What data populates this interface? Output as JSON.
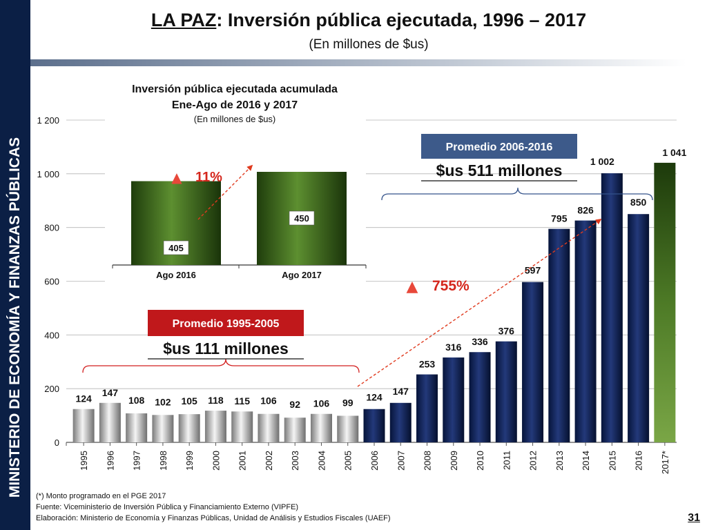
{
  "sidebar": {
    "label": "MINISTERIO DE ECONOMÍA Y FINANZAS PÚBLICAS"
  },
  "header": {
    "title_prefix": "LA PAZ",
    "title_rest": ": Inversión pública ejecutada, 1996 – 2017",
    "subtitle": "(En millones de $us)"
  },
  "colors": {
    "grey_bar": "#b8b8b8",
    "navy_bar": "#0d2259",
    "green_bar": "#3e6b1f",
    "red_box": "#c0181b",
    "blue_box": "#3d5a8a",
    "arrow": "#e03a1e"
  },
  "chart_data": [
    {
      "type": "bar",
      "title": "",
      "xlabel": "",
      "ylabel": "",
      "ylim": [
        0,
        1200
      ],
      "yticks": [
        0,
        200,
        400,
        600,
        800,
        1000,
        1200
      ],
      "ytick_labels": [
        "0",
        "200",
        "400",
        "600",
        "800",
        "1 000",
        "1 200"
      ],
      "grid": true,
      "categories": [
        "1995",
        "1996",
        "1997",
        "1998",
        "1999",
        "2000",
        "2001",
        "2002",
        "2003",
        "2004",
        "2005",
        "2006",
        "2007",
        "2008",
        "2009",
        "2010",
        "2011",
        "2012",
        "2013",
        "2014",
        "2015",
        "2016",
        "2017*"
      ],
      "values": [
        124,
        147,
        108,
        102,
        105,
        118,
        115,
        106,
        92,
        106,
        99,
        124,
        147,
        253,
        316,
        336,
        376,
        597,
        795,
        826,
        1002,
        850,
        1041
      ],
      "value_labels": [
        "124",
        "147",
        "108",
        "102",
        "105",
        "118",
        "115",
        "106",
        "92",
        "106",
        "99",
        "124",
        "147",
        "253",
        "316",
        "336",
        "376",
        "597",
        "795",
        "826",
        "1 002",
        "850",
        "1 041"
      ],
      "annotations": {
        "avg1_box": "Promedio 1995-2005",
        "avg1_value": "$us 111 millones",
        "avg2_box": "Promedio 2006-2016",
        "avg2_value": "$us 511 millones",
        "growth_pct": "755%",
        "triangle": "▲"
      }
    },
    {
      "type": "bar",
      "title": "Inversión pública ejecutada acumulada",
      "subtitle": "Ene-Ago de 2016 y 2017",
      "units": "(En millones de $us)",
      "categories": [
        "Ago 2016",
        "Ago 2017"
      ],
      "values": [
        405,
        450
      ],
      "value_labels": [
        "405",
        "450"
      ],
      "growth_pct": "11%",
      "triangle": "▲"
    }
  ],
  "footnotes": {
    "note": "(*) Monto programado en el PGE 2017",
    "source": "Fuente: Viceministerio de Inversión Pública y Financiamiento Externo (VIPFE)",
    "author": "Elaboración: Ministerio de Economía y Finanzas Públicas, Unidad de Análisis y Estudios Fiscales (UAEF)"
  },
  "page_number": "31"
}
